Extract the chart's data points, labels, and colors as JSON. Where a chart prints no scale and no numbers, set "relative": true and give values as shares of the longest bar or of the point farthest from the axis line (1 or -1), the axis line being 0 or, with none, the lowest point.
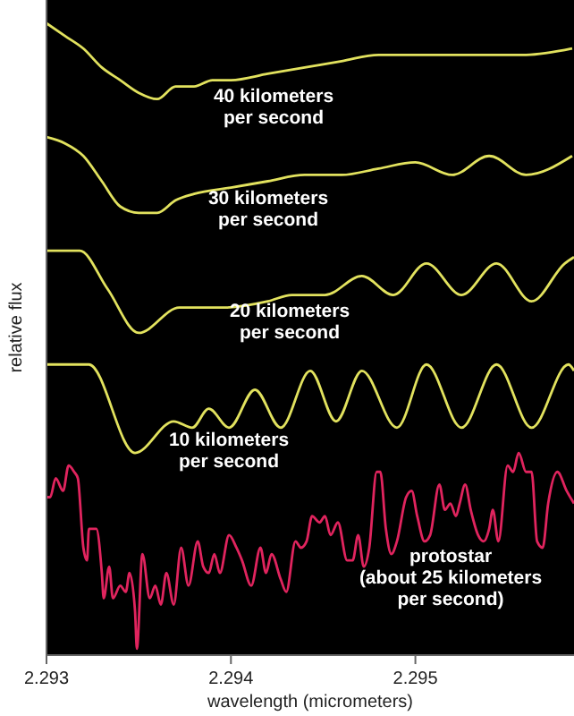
{
  "chart_data": {
    "type": "line",
    "relative": true,
    "xlabel": "wavelength (micrometers)",
    "ylabel": "relative flux",
    "xlim": [
      2.293,
      2.29586
    ],
    "xticks": [
      2.293,
      2.294,
      2.295
    ],
    "series": [
      {
        "name": "40 kilometers\nper second",
        "color": "#e2e25e",
        "x": [
          2.293,
          2.2931,
          2.2932,
          2.2933,
          2.2934,
          2.2935,
          2.2936,
          2.2937,
          2.2938,
          2.2939,
          2.294,
          2.2942,
          2.2944,
          2.2946,
          2.2948,
          2.295,
          2.2952,
          2.2954,
          2.2956,
          2.29585
        ],
        "values": [
          1.0,
          0.98,
          0.96,
          0.93,
          0.91,
          0.89,
          0.88,
          0.9,
          0.9,
          0.91,
          0.91,
          0.92,
          0.93,
          0.94,
          0.95,
          0.95,
          0.95,
          0.95,
          0.95,
          0.96
        ]
      },
      {
        "name": "30 kilometers\nper second",
        "color": "#e2e25e",
        "x": [
          2.293,
          2.2931,
          2.2932,
          2.2933,
          2.2934,
          2.2935,
          2.2936,
          2.2937,
          2.2938,
          2.294,
          2.2942,
          2.2944,
          2.2946,
          2.2948,
          2.295,
          2.2952,
          2.2954,
          2.2956,
          2.29585
        ],
        "values": [
          0.82,
          0.81,
          0.79,
          0.75,
          0.71,
          0.7,
          0.7,
          0.72,
          0.73,
          0.74,
          0.75,
          0.76,
          0.76,
          0.77,
          0.78,
          0.76,
          0.79,
          0.76,
          0.79
        ]
      },
      {
        "name": "20 kilometers\nper second",
        "color": "#e2e25e",
        "x": [
          2.293,
          2.29318,
          2.29333,
          2.2935,
          2.29372,
          2.29396,
          2.2942,
          2.29433,
          2.29451,
          2.29471,
          2.29488,
          2.29506,
          2.29525,
          2.29544,
          2.29563,
          2.29581,
          2.29586
        ],
        "values": [
          0.64,
          0.64,
          0.58,
          0.51,
          0.55,
          0.55,
          0.56,
          0.57,
          0.57,
          0.6,
          0.57,
          0.62,
          0.57,
          0.62,
          0.56,
          0.62,
          0.63
        ]
      },
      {
        "name": "10 kilometers\nper second",
        "color": "#e2e25e",
        "x": [
          2.293,
          2.29323,
          2.29348,
          2.29369,
          2.29379,
          2.29388,
          2.29399,
          2.29413,
          2.29427,
          2.29443,
          2.29457,
          2.29471,
          2.2949,
          2.29506,
          2.29525,
          2.29544,
          2.29563,
          2.29583,
          2.29586
        ],
        "values": [
          0.46,
          0.46,
          0.32,
          0.37,
          0.36,
          0.39,
          0.36,
          0.42,
          0.36,
          0.45,
          0.37,
          0.45,
          0.36,
          0.46,
          0.36,
          0.46,
          0.36,
          0.46,
          0.45
        ]
      },
      {
        "name": "protostar\n(about 25 kilometers\nper second)",
        "color": "#e0245e",
        "x": [
          2.293,
          2.29302,
          2.29305,
          2.29309,
          2.29312,
          2.29315,
          2.29317,
          2.2932,
          2.29322,
          2.29323,
          2.29327,
          2.2933,
          2.29331,
          2.29334,
          2.29336,
          2.2934,
          2.29343,
          2.29345,
          2.29348,
          2.29349,
          2.29352,
          2.29356,
          2.29359,
          2.29362,
          2.29365,
          2.29369,
          2.29373,
          2.29377,
          2.29382,
          2.29385,
          2.29388,
          2.29391,
          2.29394,
          2.29399,
          2.29403,
          2.29406,
          2.29411,
          2.29416,
          2.29419,
          2.29422,
          2.29427,
          2.2943,
          2.29435,
          2.29438,
          2.29441,
          2.29444,
          2.29448,
          2.29451,
          2.29454,
          2.29458,
          2.29463,
          2.29466,
          2.29469,
          2.29472,
          2.29475,
          2.29479,
          2.29481,
          2.29484,
          2.29487,
          2.2949,
          2.29495,
          2.29498,
          2.29501,
          2.29505,
          2.29508,
          2.29513,
          2.29516,
          2.29519,
          2.29522,
          2.29524,
          2.29527,
          2.2953,
          2.29534,
          2.29537,
          2.2954,
          2.29542,
          2.29545,
          2.2955,
          2.29553,
          2.29556,
          2.2956,
          2.29563,
          2.29566,
          2.29569,
          2.29572,
          2.29577,
          2.29582,
          2.29586
        ],
        "values": [
          0.25,
          0.25,
          0.28,
          0.26,
          0.3,
          0.29,
          0.28,
          0.17,
          0.15,
          0.2,
          0.2,
          0.13,
          0.09,
          0.14,
          0.09,
          0.11,
          0.1,
          0.13,
          0.07,
          0.01,
          0.16,
          0.09,
          0.11,
          0.08,
          0.13,
          0.08,
          0.17,
          0.11,
          0.18,
          0.14,
          0.13,
          0.16,
          0.13,
          0.19,
          0.17,
          0.15,
          0.11,
          0.17,
          0.13,
          0.16,
          0.12,
          0.1,
          0.18,
          0.17,
          0.18,
          0.22,
          0.21,
          0.22,
          0.19,
          0.21,
          0.15,
          0.15,
          0.19,
          0.14,
          0.17,
          0.29,
          0.29,
          0.2,
          0.16,
          0.18,
          0.25,
          0.26,
          0.22,
          0.18,
          0.19,
          0.27,
          0.23,
          0.24,
          0.22,
          0.24,
          0.27,
          0.23,
          0.19,
          0.18,
          0.2,
          0.23,
          0.18,
          0.3,
          0.29,
          0.32,
          0.29,
          0.29,
          0.18,
          0.17,
          0.24,
          0.29,
          0.26,
          0.24
        ]
      }
    ]
  }
}
